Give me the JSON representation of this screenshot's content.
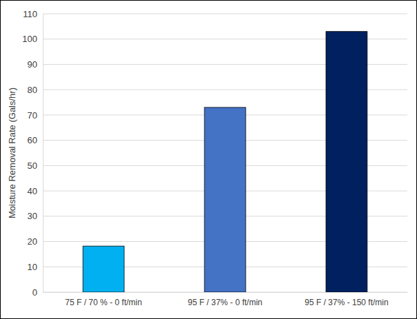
{
  "chart_data": {
    "type": "bar",
    "y_label": "Moisture Removal Rate (Gals/hr)",
    "categories": [
      "75 F / 70 % - 0 ft/min",
      "95 F / 37% - 0 ft/min",
      "95 F / 37% - 150 ft/min"
    ],
    "values": [
      18.2,
      73,
      103
    ],
    "colors": [
      "#00b0f0",
      "#4472c4",
      "#002060"
    ],
    "ylim": [
      0,
      110
    ],
    "yticks": [
      0,
      10,
      20,
      30,
      40,
      50,
      60,
      70,
      80,
      90,
      100,
      110
    ],
    "grid": true
  }
}
